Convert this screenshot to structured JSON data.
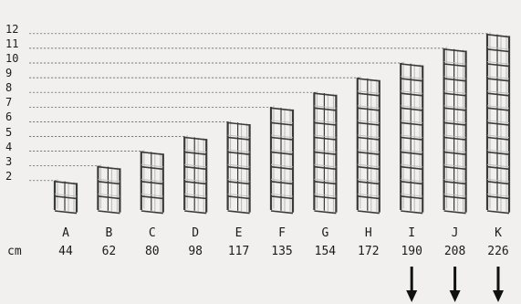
{
  "levels": [
    "2",
    "3",
    "4",
    "5",
    "6",
    "7",
    "8",
    "9",
    "10",
    "11",
    "12"
  ],
  "unit_label": "cm",
  "columns": [
    {
      "letter": "A",
      "cm": "44",
      "levels": 2
    },
    {
      "letter": "B",
      "cm": "62",
      "levels": 3
    },
    {
      "letter": "C",
      "cm": "80",
      "levels": 4
    },
    {
      "letter": "D",
      "cm": "98",
      "levels": 5
    },
    {
      "letter": "E",
      "cm": "117",
      "levels": 6
    },
    {
      "letter": "F",
      "cm": "135",
      "levels": 7
    },
    {
      "letter": "G",
      "cm": "154",
      "levels": 8
    },
    {
      "letter": "H",
      "cm": "172",
      "levels": 9
    },
    {
      "letter": "I",
      "cm": "190",
      "levels": 10,
      "arrow": true
    },
    {
      "letter": "J",
      "cm": "208",
      "levels": 11,
      "arrow": true
    },
    {
      "letter": "K",
      "cm": "226",
      "levels": 12,
      "arrow": true
    }
  ],
  "colors": {
    "background": "#f1f0ef",
    "text": "#1b1b1b",
    "guide": "#555555",
    "frame": "#3a3a3a",
    "frame_light": "#b9b9b9"
  }
}
